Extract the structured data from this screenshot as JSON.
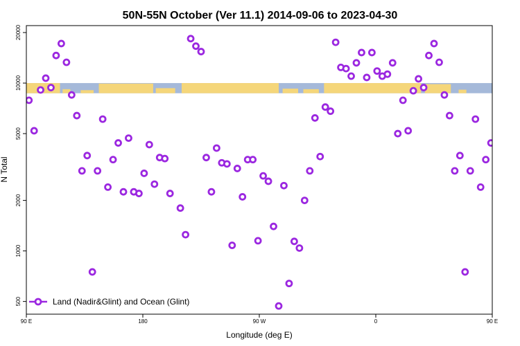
{
  "chart_data": {
    "type": "scatter",
    "title": "50N-55N October (Ver 11.1)   2014-09-06 to 2023-04-30",
    "xlabel": "Longitude (deg E)",
    "ylabel": "N Total",
    "x_scale": "linear",
    "y_scale": "log",
    "xlim": [
      90,
      450
    ],
    "ylim": [
      420,
      22000
    ],
    "x_ticks": [
      {
        "value": 90,
        "label": "90 E"
      },
      {
        "value": 180,
        "label": "180"
      },
      {
        "value": 270,
        "label": "90 W"
      },
      {
        "value": 360,
        "label": "0"
      },
      {
        "value": 450,
        "label": "90 E"
      },
      {
        "value": 540,
        "label": "180"
      }
    ],
    "y_ticks": [
      {
        "value": 500,
        "label": "500"
      },
      {
        "value": 1000,
        "label": "1000"
      },
      {
        "value": 2000,
        "label": "2000"
      },
      {
        "value": 5000,
        "label": "5000"
      },
      {
        "value": 10000,
        "label": "10000"
      },
      {
        "value": 20000,
        "label": "20000"
      }
    ],
    "band": {
      "y_min": 8700,
      "y_max": 10000,
      "ocean_color": "#a5b9d9",
      "land_color": "#f5d67a"
    },
    "legend": {
      "position": "bottom-left"
    },
    "series": [
      {
        "name": "Land (Nadir&Glint) and Ocean (Glint)",
        "color": "#9b27e0",
        "points": [
          [
            92,
            7900
          ],
          [
            96,
            5200
          ],
          [
            101,
            9100
          ],
          [
            105,
            10700
          ],
          [
            109,
            9400
          ],
          [
            113,
            14600
          ],
          [
            117,
            17200
          ],
          [
            121,
            13300
          ],
          [
            125,
            8500
          ],
          [
            129,
            6400
          ],
          [
            133,
            3000
          ],
          [
            137,
            3700
          ],
          [
            141,
            750
          ],
          [
            145,
            3000
          ],
          [
            149,
            6100
          ],
          [
            153,
            2400
          ],
          [
            157,
            3500
          ],
          [
            161,
            4400
          ],
          [
            165,
            2250
          ],
          [
            169,
            4700
          ],
          [
            173,
            2250
          ],
          [
            177,
            2200
          ],
          [
            181,
            2900
          ],
          [
            185,
            4300
          ],
          [
            189,
            2500
          ],
          [
            193,
            3600
          ],
          [
            197,
            3550
          ],
          [
            201,
            2200
          ],
          [
            209,
            1800
          ],
          [
            213,
            1250
          ],
          [
            217,
            18400
          ],
          [
            221,
            16600
          ],
          [
            225,
            15400
          ],
          [
            229,
            3600
          ],
          [
            233,
            2250
          ],
          [
            237,
            4100
          ],
          [
            241,
            3350
          ],
          [
            245,
            3300
          ],
          [
            249,
            1080
          ],
          [
            253,
            3100
          ],
          [
            257,
            2100
          ],
          [
            261,
            3500
          ],
          [
            265,
            3500
          ],
          [
            269,
            1150
          ],
          [
            273,
            2800
          ],
          [
            277,
            2600
          ],
          [
            281,
            1400
          ],
          [
            285,
            470
          ],
          [
            289,
            2450
          ],
          [
            293,
            640
          ],
          [
            297,
            1140
          ],
          [
            301,
            1040
          ],
          [
            305,
            2000
          ],
          [
            309,
            3000
          ],
          [
            313,
            6200
          ],
          [
            317,
            3650
          ],
          [
            321,
            7200
          ],
          [
            325,
            6800
          ],
          [
            329,
            17500
          ],
          [
            333,
            12400
          ],
          [
            337,
            12200
          ],
          [
            341,
            11000
          ],
          [
            345,
            13200
          ],
          [
            349,
            15200
          ],
          [
            353,
            10800
          ],
          [
            357,
            15200
          ],
          [
            361,
            11800
          ],
          [
            365,
            11000
          ],
          [
            369,
            11300
          ],
          [
            373,
            13200
          ],
          [
            377,
            5000
          ],
          [
            381,
            7900
          ],
          [
            385,
            5200
          ],
          [
            389,
            9000
          ],
          [
            393,
            10600
          ],
          [
            397,
            9400
          ],
          [
            401,
            14600
          ],
          [
            405,
            17200
          ],
          [
            409,
            13300
          ],
          [
            413,
            8500
          ],
          [
            417,
            6400
          ],
          [
            421,
            3000
          ],
          [
            425,
            3700
          ],
          [
            429,
            750
          ],
          [
            433,
            3000
          ],
          [
            437,
            6100
          ],
          [
            441,
            2400
          ],
          [
            445,
            3500
          ],
          [
            449,
            4400
          ]
        ]
      }
    ]
  }
}
